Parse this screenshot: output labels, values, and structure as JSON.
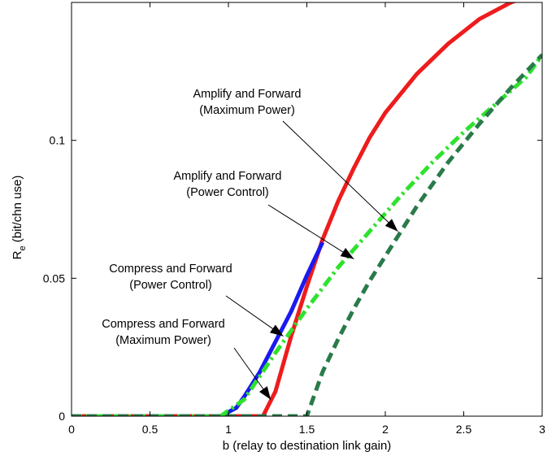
{
  "chart_data": {
    "type": "line",
    "title": "",
    "xlabel": "b (relay to destination link gain)",
    "ylabel_main": "R",
    "ylabel_sub": "e",
    "ylabel_rest": " (bit/chn use)",
    "xlim": [
      0,
      3
    ],
    "ylim": [
      0,
      0.15
    ],
    "xticks": [
      0,
      0.5,
      1,
      1.5,
      2,
      2.5,
      3
    ],
    "xtick_labels": [
      "0",
      "0.5",
      "1",
      "1.5",
      "2",
      "2.5",
      "3"
    ],
    "yticks": [
      0,
      0.05,
      0.1
    ],
    "ytick_labels": [
      "0",
      "0.05",
      "0.1"
    ],
    "grid": false,
    "series": [
      {
        "key": "af_max",
        "color": "#ee1c1c",
        "style": "solid",
        "x": [
          0,
          1.22,
          1.3,
          1.4,
          1.5,
          1.6,
          1.7,
          1.8,
          1.9,
          2.0,
          2.2,
          2.4,
          2.6,
          2.8,
          2.85
        ],
        "y": [
          0,
          0,
          0.009,
          0.029,
          0.047,
          0.064,
          0.078,
          0.09,
          0.101,
          0.11,
          0.124,
          0.135,
          0.144,
          0.15,
          0.151
        ]
      },
      {
        "key": "cf_pc",
        "color": "#1a1aee",
        "style": "solid",
        "x": [
          0.95,
          1.05,
          1.1,
          1.2,
          1.3,
          1.4,
          1.5,
          1.6
        ],
        "y": [
          0,
          0.003,
          0.007,
          0.016,
          0.027,
          0.038,
          0.051,
          0.063
        ]
      },
      {
        "key": "af_pc",
        "color": "#2ee22e",
        "style": "dashdot",
        "x": [
          0,
          0.95,
          1.1,
          1.3,
          1.5,
          1.7,
          1.9,
          2.1,
          2.3,
          2.5,
          2.7,
          2.9,
          3.0
        ],
        "y": [
          0,
          0,
          0.006,
          0.023,
          0.039,
          0.054,
          0.067,
          0.08,
          0.092,
          0.103,
          0.113,
          0.123,
          0.131
        ]
      },
      {
        "key": "cf_max",
        "color": "#2a7a4a",
        "style": "dashed",
        "x": [
          0,
          1.5,
          1.6,
          1.7,
          1.8,
          1.9,
          2.0,
          2.1,
          2.2,
          2.4,
          2.6,
          2.8,
          3.0
        ],
        "y": [
          0,
          0,
          0.016,
          0.028,
          0.039,
          0.049,
          0.058,
          0.067,
          0.076,
          0.092,
          0.106,
          0.119,
          0.131
        ]
      }
    ],
    "annotations": [
      {
        "line1": "Amplify and Forward",
        "line2": "(Maximum Power)",
        "target": [
          2.08,
          0.067
        ]
      },
      {
        "line1": "Amplify and Forward",
        "line2": "(Power Control)",
        "target": [
          1.8,
          0.057
        ]
      },
      {
        "line1": "Compress and Forward",
        "line2": "(Power Control)",
        "target": [
          1.35,
          0.029
        ]
      },
      {
        "line1": "Compress and Forward",
        "line2": "(Maximum Power)",
        "target": [
          1.27,
          0.006
        ]
      }
    ]
  }
}
